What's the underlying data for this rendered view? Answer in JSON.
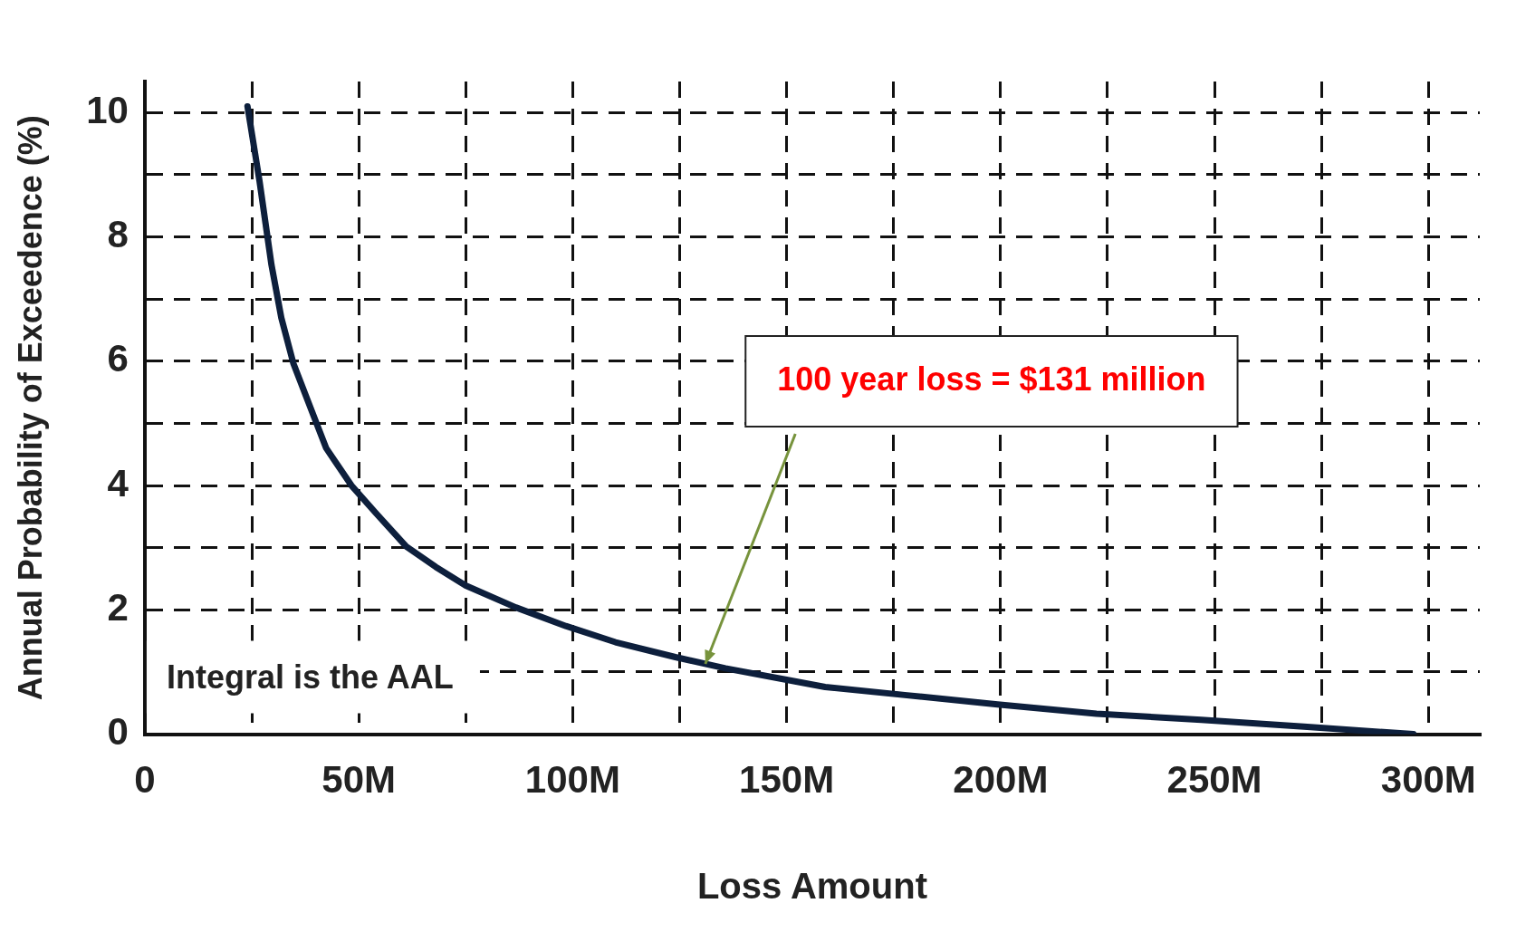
{
  "chart_data": {
    "type": "line",
    "xlabel": "Loss Amount",
    "ylabel": "Annual Probability of Exceedence (%)",
    "x": [
      24,
      26.8,
      29.6,
      31.9,
      34.7,
      38.5,
      42.4,
      48.3,
      54.1,
      61.1,
      68,
      75,
      86.7,
      98.4,
      110,
      124,
      135.7,
      149.7,
      159,
      177.6,
      199.3,
      222.4,
      246.9,
      270.9,
      296.5
    ],
    "series": [
      {
        "color": "#0d1f3c",
        "values": [
          10.1,
          8.9,
          7.55,
          6.7,
          5.97,
          5.29,
          4.6,
          4.0,
          3.55,
          3.02,
          2.69,
          2.39,
          2.04,
          1.74,
          1.48,
          1.24,
          1.06,
          0.88,
          0.76,
          0.63,
          0.48,
          0.33,
          0.23,
          0.12,
          0.0
        ]
      }
    ],
    "xlim": [
      0,
      312
    ],
    "xticks": [
      0,
      {
        "value": 25,
        "label": null
      },
      {
        "value": 50,
        "label": "50M"
      },
      {
        "value": 75,
        "label": null
      },
      {
        "value": 100,
        "label": "100M"
      },
      {
        "value": 125,
        "label": null
      },
      {
        "value": 150,
        "label": "150M"
      },
      {
        "value": 175,
        "label": null
      },
      {
        "value": 200,
        "label": "200M"
      },
      {
        "value": 225,
        "label": null
      },
      {
        "value": 250,
        "label": "250M"
      },
      {
        "value": 275,
        "label": null
      },
      {
        "value": 300,
        "label": "300M"
      }
    ],
    "ylim": [
      0,
      10.5
    ],
    "yticks": [
      0,
      {
        "value": 1,
        "label": null
      },
      2,
      {
        "value": 3,
        "label": null
      },
      4,
      {
        "value": 5,
        "label": null
      },
      6,
      {
        "value": 7,
        "label": null
      },
      8,
      {
        "value": 9,
        "label": null
      },
      10
    ],
    "grid": true,
    "legend": false,
    "marker": "none",
    "line_style": "solid",
    "annotations": [
      {
        "text": "100 year loss = $131 million",
        "x": 131,
        "y": 1.13
      },
      "Integral is the AAL"
    ]
  }
}
